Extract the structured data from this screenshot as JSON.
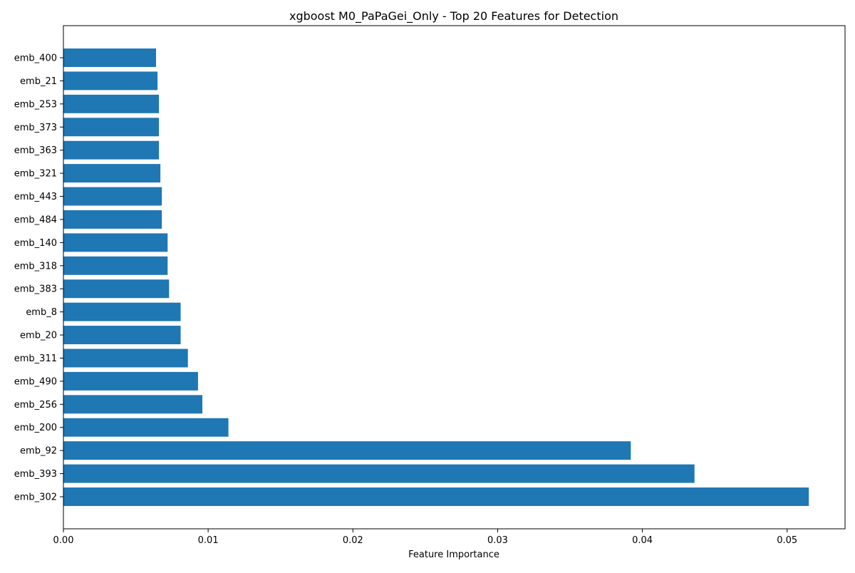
{
  "chart_data": {
    "type": "bar",
    "orientation": "horizontal",
    "title": "xgboost M0_PaPaGei_Only - Top 20 Features for Detection",
    "xlabel": "Feature Importance",
    "ylabel": "",
    "xlim": [
      0,
      0.054
    ],
    "x_ticks": [
      0.0,
      0.01,
      0.02,
      0.03,
      0.04,
      0.05
    ],
    "x_tick_labels": [
      "0.00",
      "0.01",
      "0.02",
      "0.03",
      "0.04",
      "0.05"
    ],
    "grid": false,
    "legend": "none",
    "bar_color": "#1f77b4",
    "categories": [
      "emb_302",
      "emb_393",
      "emb_92",
      "emb_200",
      "emb_256",
      "emb_490",
      "emb_311",
      "emb_20",
      "emb_8",
      "emb_383",
      "emb_318",
      "emb_140",
      "emb_484",
      "emb_443",
      "emb_321",
      "emb_363",
      "emb_373",
      "emb_253",
      "emb_21",
      "emb_400"
    ],
    "values": [
      0.0515,
      0.0436,
      0.0392,
      0.0114,
      0.0096,
      0.0093,
      0.0086,
      0.0081,
      0.0081,
      0.0073,
      0.0072,
      0.0072,
      0.0068,
      0.0068,
      0.0067,
      0.0066,
      0.0066,
      0.0066,
      0.0065,
      0.0064
    ]
  }
}
